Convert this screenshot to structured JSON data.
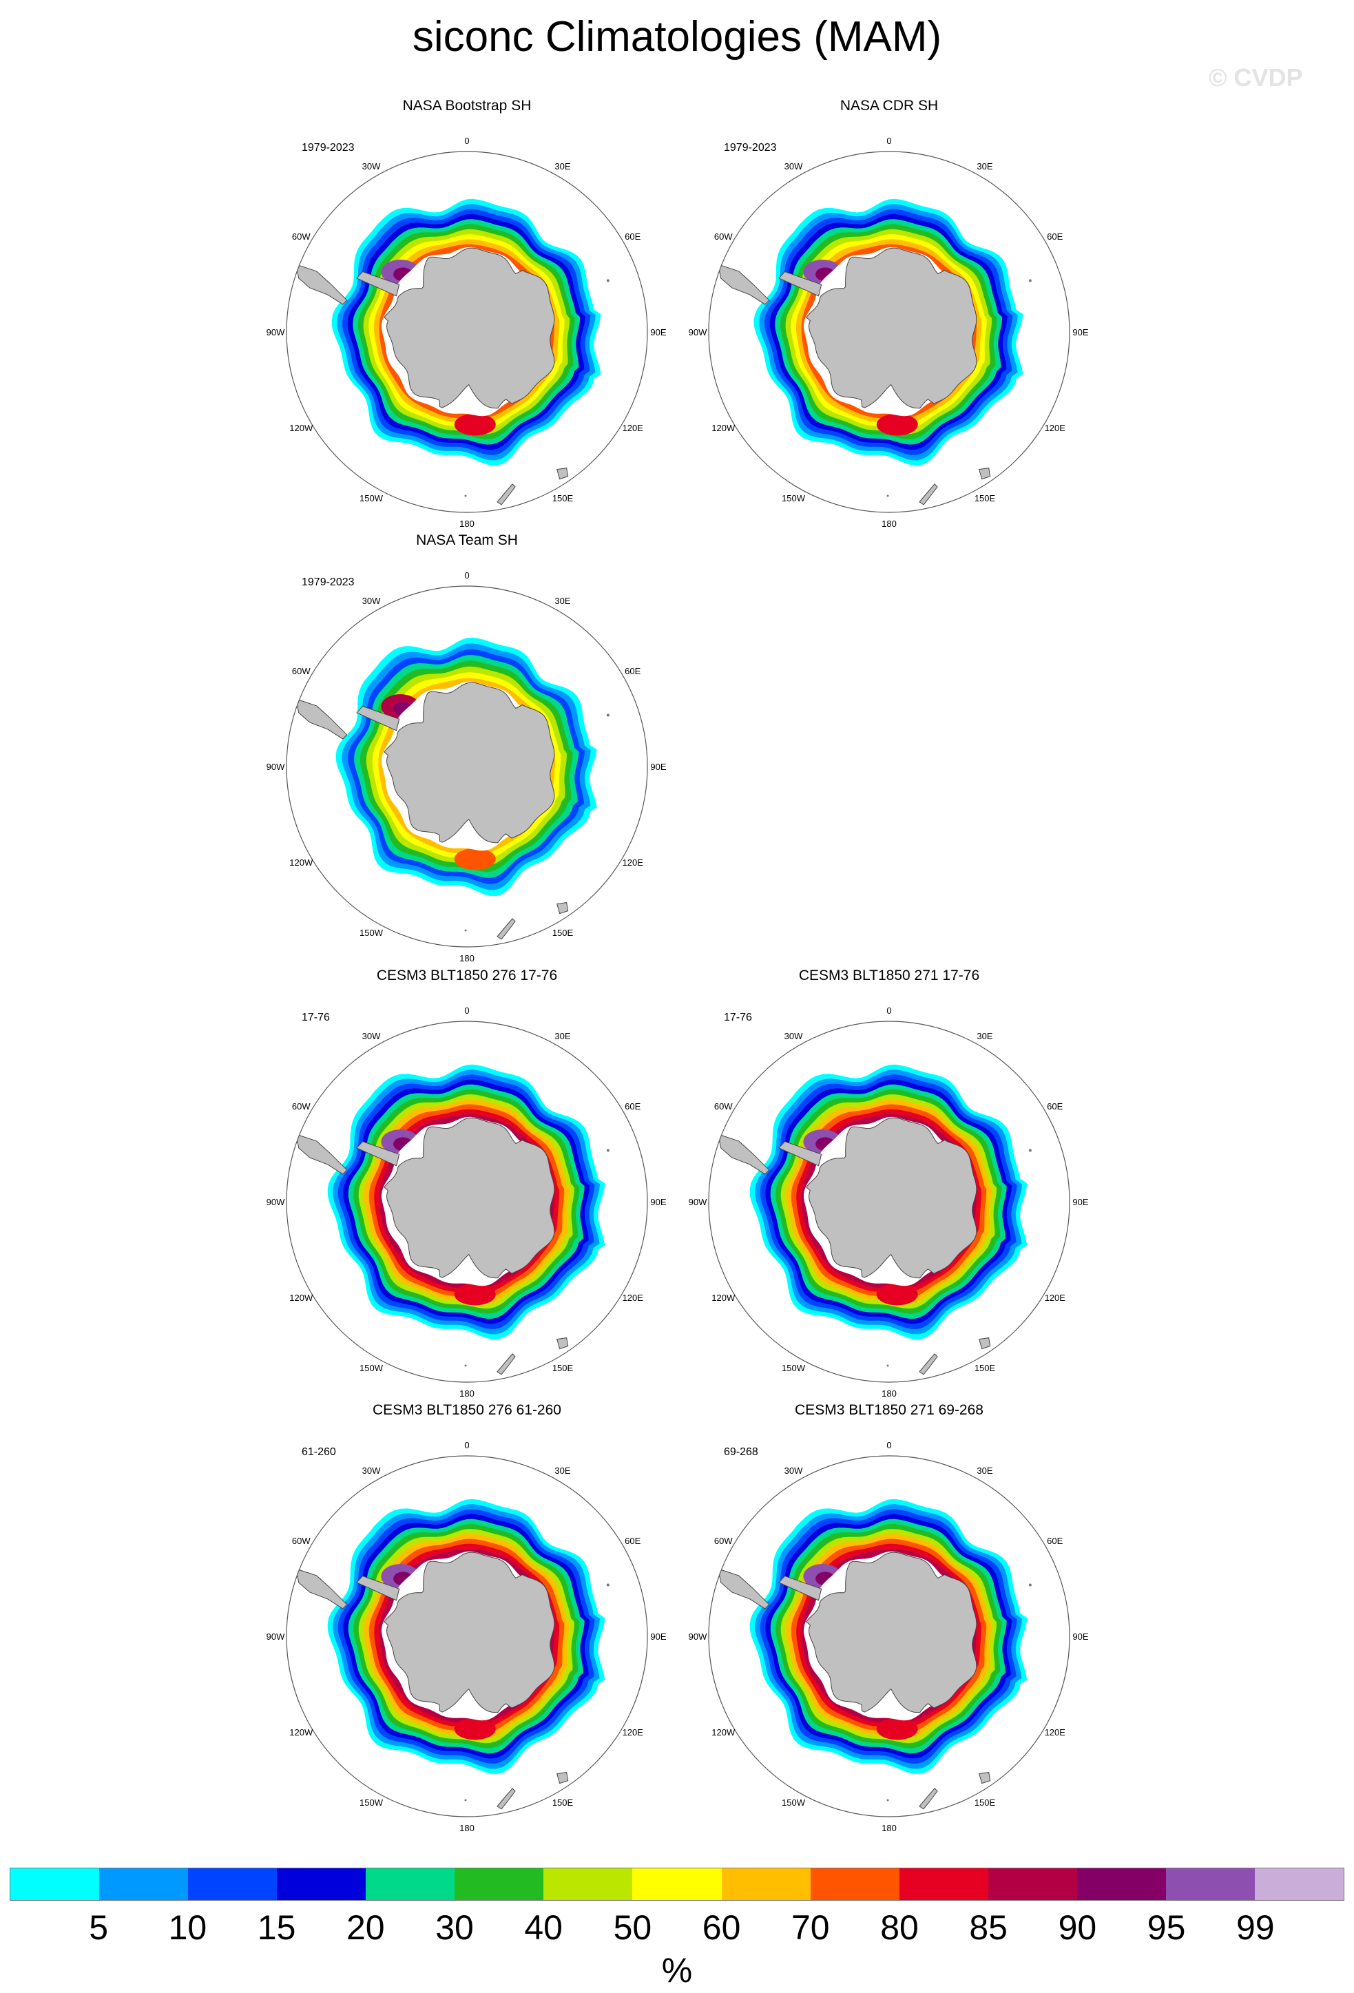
{
  "title": "siconc Climatologies (MAM)",
  "watermark": "© CVDP",
  "colorbar": {
    "colors": [
      "#00ffff",
      "#0099ff",
      "#0044ff",
      "#0000dd",
      "#00d98a",
      "#22bb22",
      "#bbe600",
      "#ffff00",
      "#ffbf00",
      "#ff5500",
      "#e60022",
      "#b30044",
      "#840066",
      "#8e50b0",
      "#c9aed9"
    ],
    "labels": [
      "5",
      "10",
      "15",
      "20",
      "30",
      "40",
      "50",
      "60",
      "70",
      "80",
      "85",
      "90",
      "95",
      "99"
    ],
    "units": "%"
  },
  "map_labels": {
    "lon": [
      "0",
      "30E",
      "60E",
      "90E",
      "120E",
      "150E",
      "180",
      "150W",
      "120W",
      "90W",
      "60W",
      "30W"
    ]
  },
  "panels": [
    {
      "id": "p1",
      "title": "NASA Bootstrap SH",
      "years": "1979-2023",
      "style": "obs"
    },
    {
      "id": "p2",
      "title": "NASA CDR SH",
      "years": "1979-2023",
      "style": "obs"
    },
    {
      "id": "p3",
      "title": "NASA Team SH",
      "years": "1979-2023",
      "style": "team"
    },
    {
      "id": "p4",
      "title": "CESM3 BLT1850 276 17-76",
      "years": "17-76",
      "style": "model"
    },
    {
      "id": "p5",
      "title": "CESM3 BLT1850 271 17-76",
      "years": "17-76",
      "style": "model"
    },
    {
      "id": "p6",
      "title": "CESM3 BLT1850 276 61-260",
      "years": "61-260",
      "style": "model2"
    },
    {
      "id": "p7",
      "title": "CESM3 BLT1850 271 69-268",
      "years": "69-268",
      "style": "model2"
    }
  ]
}
